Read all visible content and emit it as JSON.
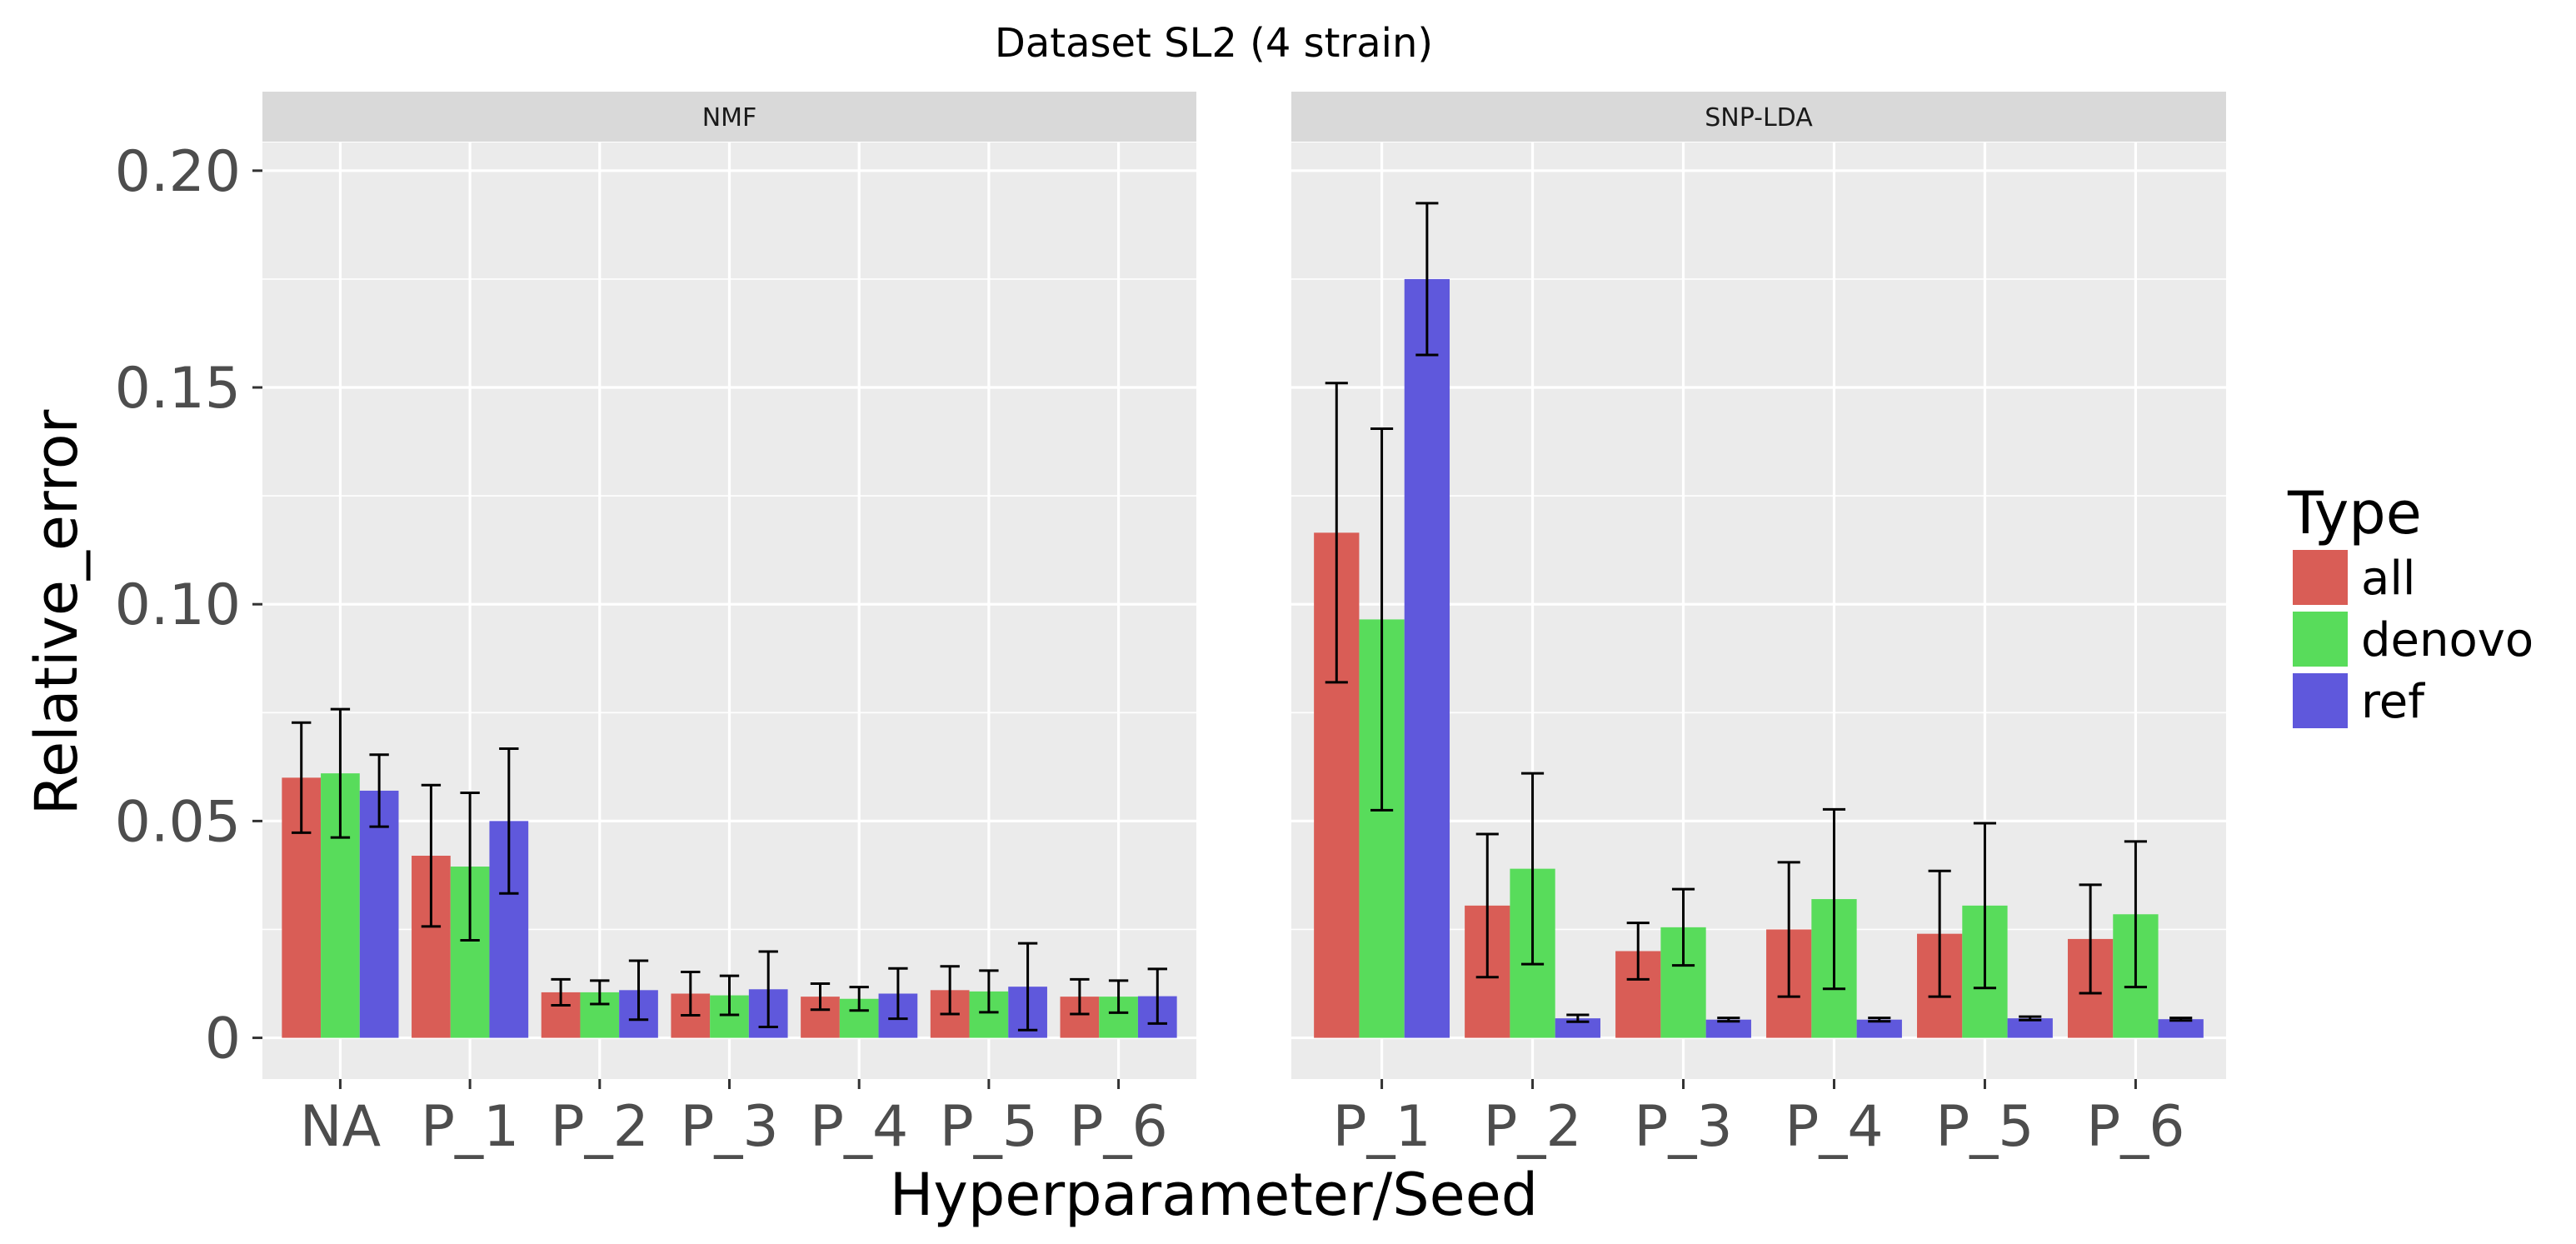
{
  "chart_data": {
    "type": "bar",
    "title": "Dataset SL2 (4 strain)",
    "xlabel": "Hyperparameter/Seed",
    "ylabel": "Relative_error",
    "ylim": [
      -0.0095,
      0.2065
    ],
    "y_ticks": [
      0,
      0.05,
      0.1,
      0.15,
      0.2
    ],
    "y_tick_labels": [
      "0",
      "0.05",
      "0.10",
      "0.15",
      "0.20"
    ],
    "legend": {
      "title": "Type",
      "placement": "right",
      "entries": [
        {
          "name": "all",
          "color": "#d95d56"
        },
        {
          "name": "denovo",
          "color": "#58dc5b"
        },
        {
          "name": "ref",
          "color": "#5f58dc"
        }
      ]
    },
    "facets": [
      {
        "label": "NMF",
        "categories": [
          "NA",
          "P_1",
          "P_2",
          "P_3",
          "P_4",
          "P_5",
          "P_6"
        ],
        "series": [
          {
            "name": "all",
            "values": [
              0.06,
              0.042,
              0.0105,
              0.0102,
              0.0095,
              0.011,
              0.0095
            ],
            "errors": [
              0.0127,
              0.0163,
              0.003,
              0.005,
              0.003,
              0.0055,
              0.004
            ]
          },
          {
            "name": "denovo",
            "values": [
              0.061,
              0.0395,
              0.0105,
              0.0098,
              0.009,
              0.0107,
              0.0095
            ],
            "errors": [
              0.0148,
              0.017,
              0.0027,
              0.0045,
              0.0027,
              0.0048,
              0.0037
            ]
          },
          {
            "name": "ref",
            "values": [
              0.057,
              0.05,
              0.011,
              0.0112,
              0.0102,
              0.0118,
              0.0096
            ],
            "errors": [
              0.0083,
              0.0167,
              0.0068,
              0.0087,
              0.0058,
              0.01,
              0.0063
            ]
          }
        ]
      },
      {
        "label": "SNP-LDA",
        "categories": [
          "P_1",
          "P_2",
          "P_3",
          "P_4",
          "P_5",
          "P_6"
        ],
        "series": [
          {
            "name": "all",
            "values": [
              0.1165,
              0.0305,
              0.02,
              0.025,
              0.024,
              0.0228
            ],
            "errors": [
              0.0345,
              0.0165,
              0.0065,
              0.0155,
              0.0145,
              0.0125
            ]
          },
          {
            "name": "denovo",
            "values": [
              0.0965,
              0.039,
              0.0255,
              0.032,
              0.0305,
              0.0285
            ],
            "errors": [
              0.044,
              0.022,
              0.0088,
              0.0207,
              0.019,
              0.0168
            ]
          },
          {
            "name": "ref",
            "values": [
              0.175,
              0.0045,
              0.0042,
              0.0042,
              0.0045,
              0.0043
            ],
            "errors": [
              0.0175,
              0.0008,
              0.0004,
              0.0004,
              0.0004,
              0.0003
            ]
          }
        ]
      }
    ]
  }
}
